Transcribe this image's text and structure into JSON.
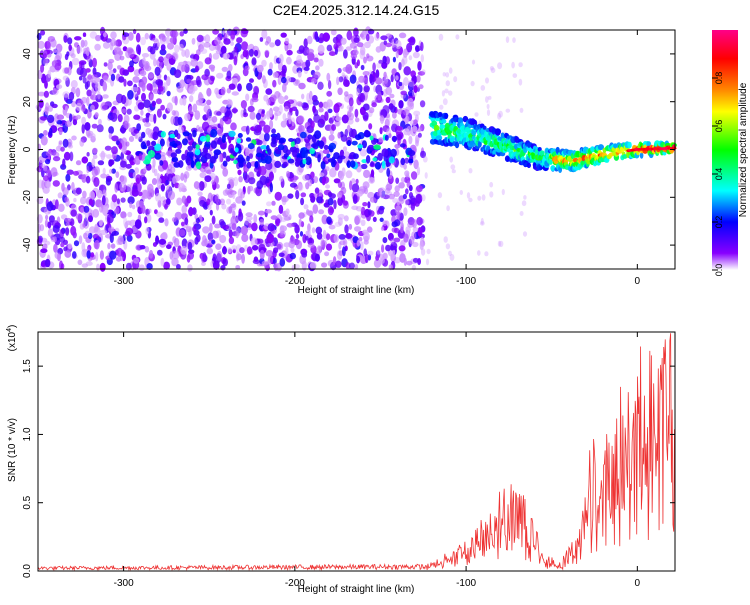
{
  "title": "C2E4.2025.312.14.24.G15",
  "spectrogram": {
    "type": "heatmap",
    "xlabel": "Height of straight line (km)",
    "ylabel": "Frequency (Hz)",
    "xlim": [
      -350,
      22
    ],
    "ylim": [
      -50,
      50
    ],
    "xticks": [
      -300,
      -200,
      -100,
      0
    ],
    "xtick_labels": [
      "-300",
      "-200",
      "-100",
      "0"
    ],
    "yticks": [
      -40,
      -20,
      0,
      20,
      40
    ],
    "ytick_labels": [
      "-40",
      "-20",
      "0",
      "20",
      "40"
    ],
    "noise_region_until_km": -125,
    "signal_track": [
      {
        "x": -120,
        "freq": 9
      },
      {
        "x": -100,
        "freq": 7
      },
      {
        "x": -80,
        "freq": 2
      },
      {
        "x": -60,
        "freq": -3
      },
      {
        "x": -40,
        "freq": -5
      },
      {
        "x": -20,
        "freq": -2
      },
      {
        "x": 0,
        "freq": 0
      },
      {
        "x": 20,
        "freq": 0.5
      }
    ],
    "colorbar": {
      "label": "Normalized spectral amplitude",
      "range": [
        0,
        1
      ],
      "ticks": [
        0.0,
        0.2,
        0.4,
        0.6,
        0.8
      ],
      "tick_labels": [
        "0.0",
        "0.2",
        "0.4",
        "0.6",
        "0.8"
      ],
      "colors": [
        "#ffffff",
        "#8800ff",
        "#0000ff",
        "#00ffff",
        "#00ff00",
        "#ffff00",
        "#ff8800",
        "#ff0000",
        "#ff0088"
      ]
    }
  },
  "snr": {
    "type": "line",
    "xlabel": "Height of straight line (km)",
    "ylabel": "SNR (10 * v/v)",
    "scale_label": "(x10",
    "scale_exp": "4",
    "scale_close": ")",
    "xlim": [
      -350,
      22
    ],
    "ylim": [
      0,
      1.75
    ],
    "xticks": [
      -300,
      -200,
      -100,
      0
    ],
    "xtick_labels": [
      "-300",
      "-200",
      "-100",
      "0"
    ],
    "yticks": [
      0.0,
      0.5,
      1.0,
      1.5
    ],
    "ytick_labels": [
      "0.0",
      "0.5",
      "1.0",
      "1.5"
    ],
    "color": "#ee3333",
    "envelope": [
      {
        "x": -350,
        "y": 0.02
      },
      {
        "x": -125,
        "y": 0.03
      },
      {
        "x": -110,
        "y": 0.12
      },
      {
        "x": -95,
        "y": 0.25
      },
      {
        "x": -85,
        "y": 0.45
      },
      {
        "x": -75,
        "y": 0.55
      },
      {
        "x": -65,
        "y": 0.5
      },
      {
        "x": -55,
        "y": 0.12
      },
      {
        "x": -45,
        "y": 0.06
      },
      {
        "x": -35,
        "y": 0.25
      },
      {
        "x": -30,
        "y": 0.55
      },
      {
        "x": -25,
        "y": 0.85
      },
      {
        "x": -20,
        "y": 0.8
      },
      {
        "x": -10,
        "y": 1.0
      },
      {
        "x": 0,
        "y": 1.2
      },
      {
        "x": 10,
        "y": 1.4
      },
      {
        "x": 22,
        "y": 1.5
      }
    ]
  }
}
